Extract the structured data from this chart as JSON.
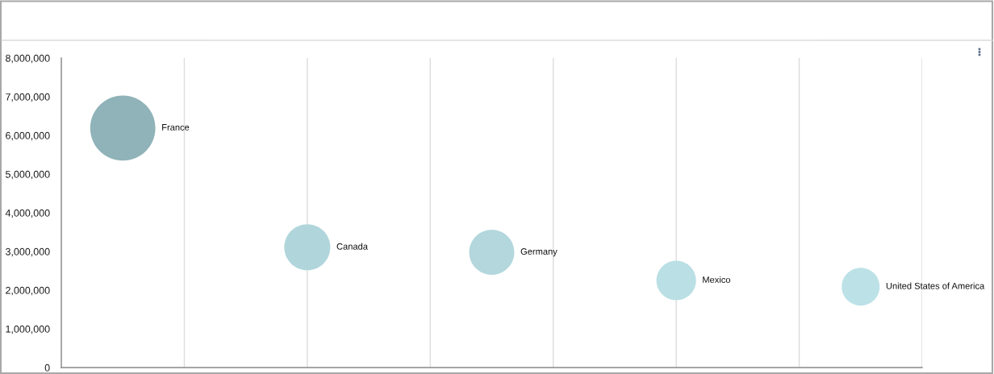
{
  "chart_data": {
    "type": "bubble",
    "categories": [
      null,
      null,
      null,
      null,
      null
    ],
    "series": [
      {
        "name": "France",
        "color": "#8fb3b8",
        "values": [
          6190000,
          null,
          null,
          null,
          null
        ],
        "sizes": [
          1,
          null,
          null,
          null,
          null
        ]
      },
      {
        "name": "Canada",
        "color": "#b0d6dc",
        "values": [
          null,
          3110000,
          null,
          null,
          null
        ],
        "sizes": [
          null,
          0.5,
          null,
          null,
          null
        ]
      },
      {
        "name": "Germany",
        "color": "#b3d7dd",
        "values": [
          null,
          null,
          2980000,
          null,
          null
        ],
        "sizes": [
          null,
          null,
          0.48,
          null,
          null
        ]
      },
      {
        "name": "Mexico",
        "color": "#badfe5",
        "values": [
          null,
          null,
          null,
          2250000,
          null
        ],
        "sizes": [
          null,
          null,
          null,
          0.37,
          null
        ]
      },
      {
        "name": "United States of America",
        "color": "#bce2e8",
        "values": [
          null,
          null,
          null,
          null,
          2090000
        ],
        "sizes": [
          null,
          null,
          null,
          null,
          0.34
        ]
      }
    ],
    "ylim": [
      0,
      8000000
    ],
    "yticks": [
      0,
      {
        "value": 1000000,
        "label": "1,000,000"
      },
      {
        "value": 2000000,
        "label": "2,000,000"
      },
      {
        "value": 3000000,
        "label": "3,000,000"
      },
      {
        "value": 4000000,
        "label": "4,000,000"
      },
      {
        "value": 5000000,
        "label": "5,000,000"
      },
      {
        "value": 6000000,
        "label": "6,000,000"
      },
      {
        "value": 7000000,
        "label": "7,000,000"
      },
      {
        "value": 8000000,
        "label": "8,000,000"
      }
    ],
    "grid": "x",
    "tick_labels": "y"
  }
}
